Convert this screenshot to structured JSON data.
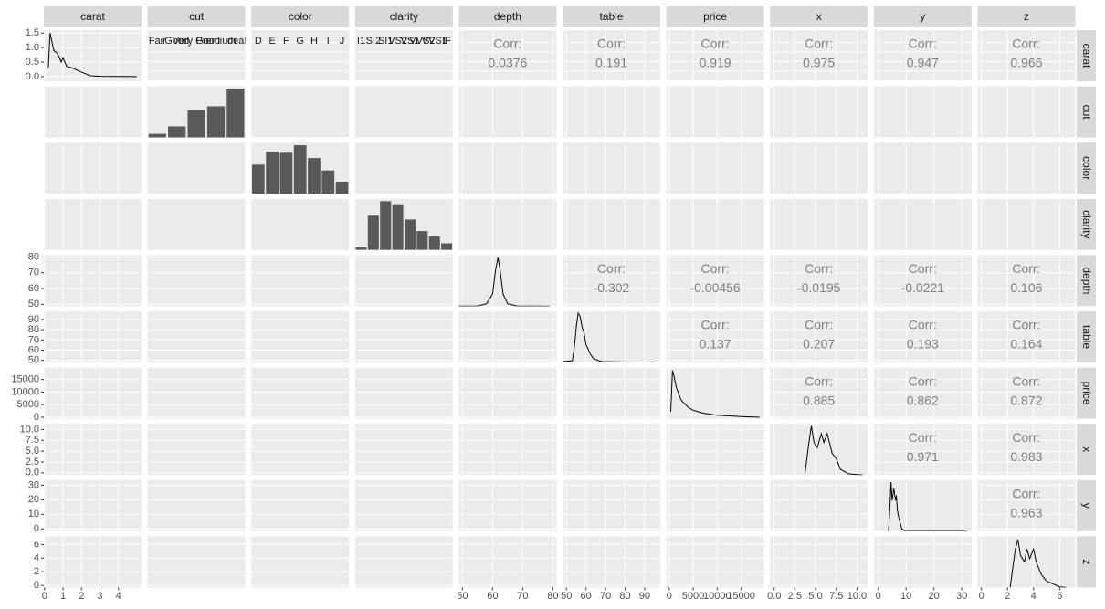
{
  "chart_data": {
    "type": "pairs",
    "correlation_label": "Corr:",
    "variables": [
      {
        "name": "carat",
        "kind": "numeric",
        "lim": [
          -0.04,
          5.25
        ],
        "ticks": [
          0,
          1,
          2,
          3,
          4
        ],
        "density": {
          "x": [
            0.2,
            0.3,
            0.4,
            0.5,
            0.7,
            0.9,
            1.0,
            1.2,
            1.5,
            2.0,
            2.5,
            3,
            4,
            5
          ],
          "y": [
            0.3,
            1.5,
            1.2,
            0.9,
            0.8,
            0.5,
            0.65,
            0.35,
            0.3,
            0.15,
            0.03,
            0.01,
            0.002,
            0
          ],
          "ylim": [
            -0.16,
            1.6
          ],
          "ticks": [
            {
              "value": 0,
              "label": "0.0"
            },
            {
              "value": 0.5,
              "label": "0.5"
            },
            {
              "value": 1,
              "label": "1.0"
            },
            {
              "value": 1.5,
              "label": "1.5"
            }
          ]
        }
      },
      {
        "name": "cut",
        "kind": "factor",
        "levels": [
          "Fair",
          "Good",
          "Very Good",
          "Premium",
          "Ideal"
        ],
        "counts": [
          1610,
          4906,
          12082,
          13791,
          21551
        ],
        "count_lim": [
          0,
          22600
        ]
      },
      {
        "name": "color",
        "kind": "factor",
        "levels": [
          "D",
          "E",
          "F",
          "G",
          "H",
          "I",
          "J"
        ],
        "counts": [
          6775,
          9797,
          9542,
          11292,
          8304,
          5422,
          2808
        ],
        "count_lim": [
          0,
          11900
        ]
      },
      {
        "name": "clarity",
        "kind": "factor",
        "levels": [
          "I1",
          "SI2",
          "SI1",
          "VS2",
          "VS1",
          "VVS2",
          "VVS1",
          "IF"
        ],
        "counts": [
          741,
          9194,
          13065,
          12258,
          8171,
          5066,
          3655,
          1790
        ],
        "count_lim": [
          0,
          13700
        ]
      },
      {
        "name": "depth",
        "kind": "numeric",
        "lim": [
          48.8,
          81.2
        ],
        "ticks": [
          50,
          60,
          70,
          80
        ],
        "density": {
          "x": [
            43,
            55,
            58,
            60,
            61,
            61.8,
            62.5,
            63.5,
            65,
            68,
            79
          ],
          "y": [
            0,
            0.002,
            0.02,
            0.1,
            0.3,
            0.4,
            0.3,
            0.1,
            0.02,
            0.002,
            0
          ],
          "ylim": [
            0,
            0.42
          ]
        }
      },
      {
        "name": "table",
        "kind": "numeric",
        "lim": [
          48,
          98
        ],
        "ticks": [
          50,
          60,
          70,
          80,
          90
        ],
        "density": {
          "x": [
            43,
            53,
            54,
            55,
            56,
            57,
            58,
            59,
            60,
            61,
            62,
            64,
            68,
            95
          ],
          "y": [
            0,
            0.01,
            0.08,
            0.2,
            0.28,
            0.26,
            0.2,
            0.17,
            0.1,
            0.08,
            0.05,
            0.02,
            0.005,
            0
          ],
          "ylim": [
            0,
            0.29
          ]
        }
      },
      {
        "name": "price",
        "kind": "numeric",
        "lim": [
          -600,
          19750
        ],
        "ticks": [
          0,
          5000,
          10000,
          15000
        ],
        "density": {
          "x": [
            326,
            700,
            1000,
            1500,
            2500,
            4000,
            5000,
            7000,
            10000,
            15000,
            18823
          ],
          "y": [
            5e-05,
            0.00034,
            0.0003,
            0.00022,
            0.00013,
            8e-05,
            6e-05,
            4e-05,
            2.5e-05,
            1.5e-05,
            1e-05
          ],
          "ylim": [
            0,
            0.00036
          ]
        }
      },
      {
        "name": "x",
        "kind": "numeric",
        "lim": [
          -0.5,
          11.3
        ],
        "ticks": [
          {
            "value": 0,
            "label": "0.0"
          },
          {
            "value": 2.5,
            "label": "2.5"
          },
          {
            "value": 5,
            "label": "5.0"
          },
          {
            "value": 7.5,
            "label": "7.5"
          },
          {
            "value": 10,
            "label": "10.0"
          }
        ],
        "density": {
          "x": [
            3.7,
            4.2,
            4.5,
            4.8,
            5.2,
            5.7,
            6.0,
            6.4,
            6.6,
            7.0,
            7.5,
            8.0,
            9.0,
            10.7
          ],
          "y": [
            0,
            0.3,
            0.45,
            0.3,
            0.25,
            0.38,
            0.3,
            0.38,
            0.32,
            0.2,
            0.15,
            0.05,
            0.01,
            0
          ],
          "ylim": [
            0,
            0.47
          ]
        }
      },
      {
        "name": "y",
        "kind": "numeric",
        "lim": [
          -1.6,
          33.5
        ],
        "ticks": [
          0,
          10,
          20,
          30
        ],
        "density": {
          "x": [
            3.7,
            4.3,
            4.6,
            5.0,
            5.6,
            6.2,
            6.5,
            6.9,
            7.5,
            8.5,
            10,
            31.8
          ],
          "y": [
            0,
            0.3,
            0.48,
            0.3,
            0.42,
            0.3,
            0.35,
            0.2,
            0.12,
            0.02,
            0,
            0
          ],
          "ylim": [
            0,
            0.5
          ]
        }
      },
      {
        "name": "z",
        "kind": "numeric",
        "lim": [
          -0.3,
          7.2
        ],
        "ticks": [
          0,
          2,
          4,
          6
        ],
        "density": {
          "x": [
            2.2,
            2.6,
            2.8,
            3.0,
            3.3,
            3.5,
            3.7,
            4.0,
            4.2,
            4.6,
            5,
            6,
            6.5
          ],
          "y": [
            0,
            0.6,
            0.75,
            0.5,
            0.4,
            0.6,
            0.45,
            0.6,
            0.4,
            0.2,
            0.1,
            0.01,
            0
          ],
          "ylim": [
            0,
            0.8
          ]
        }
      }
    ],
    "correlations": [
      [
        0.0376,
        0.191,
        0.919,
        0.975,
        0.947,
        0.966
      ],
      [
        -0.302,
        -0.00456,
        -0.0195,
        -0.0221,
        0.106
      ],
      [
        0.137,
        0.207,
        0.193,
        0.164
      ],
      [
        0.885,
        0.862,
        0.872
      ],
      [
        0.971,
        0.983
      ],
      [
        0.963
      ]
    ]
  }
}
